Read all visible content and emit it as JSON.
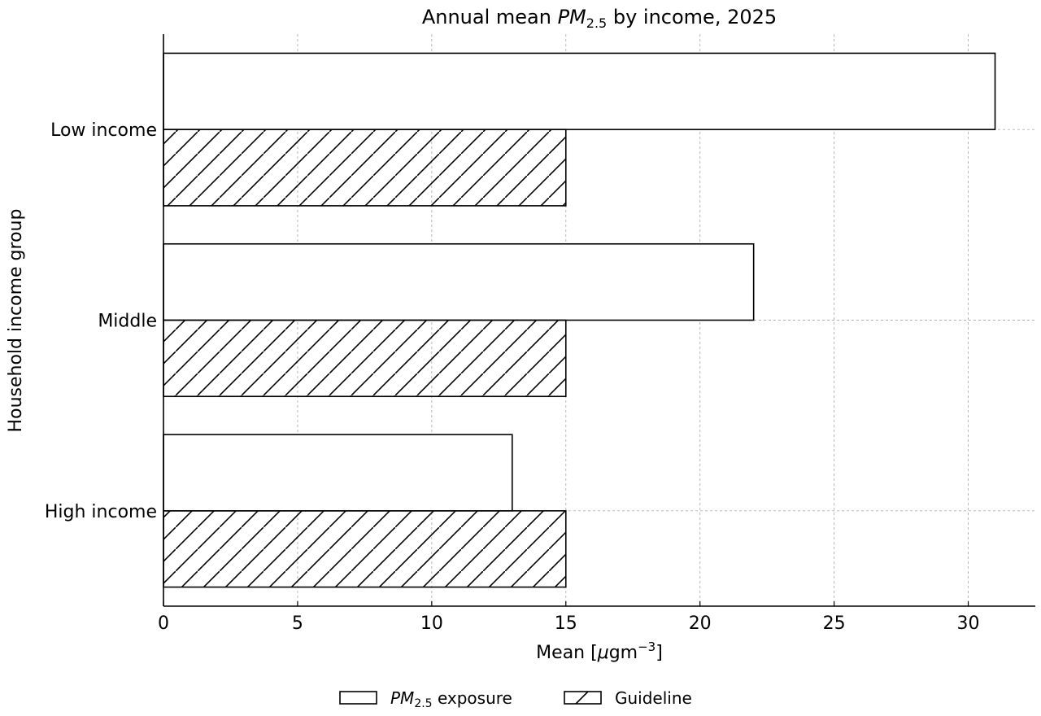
{
  "chart_data": {
    "type": "bar",
    "orientation": "horizontal",
    "title": {
      "prefix": "Annual mean ",
      "symbol": "PM",
      "subscript": "2.5",
      "suffix": " by income, 2025"
    },
    "xlabel": {
      "prefix": "Mean [",
      "mu": "μ",
      "unit": "gm",
      "exponent": "−3",
      "suffix": "]"
    },
    "ylabel": "Household income group",
    "categories": [
      "Low income",
      "Middle",
      "High income"
    ],
    "series": [
      {
        "name": "exposure",
        "values": [
          31,
          22,
          13
        ]
      },
      {
        "name": "Guideline",
        "values": [
          15,
          15,
          15
        ]
      }
    ],
    "legend": {
      "items": [
        {
          "symbol": "PM",
          "subscript": "2.5",
          "suffix": " exposure"
        },
        {
          "label": "Guideline"
        }
      ],
      "placement": "bottom-center"
    },
    "xlim": [
      0,
      32.5
    ],
    "xticks": [
      0,
      5,
      10,
      15,
      20,
      25,
      30
    ],
    "grid": true,
    "grid_style": "dashed",
    "colors": {
      "bar_fill": "#ffffff",
      "bar_stroke": "#000000",
      "grid": "#b0b0b0"
    },
    "hatch": {
      "Guideline": "diagonal"
    }
  }
}
